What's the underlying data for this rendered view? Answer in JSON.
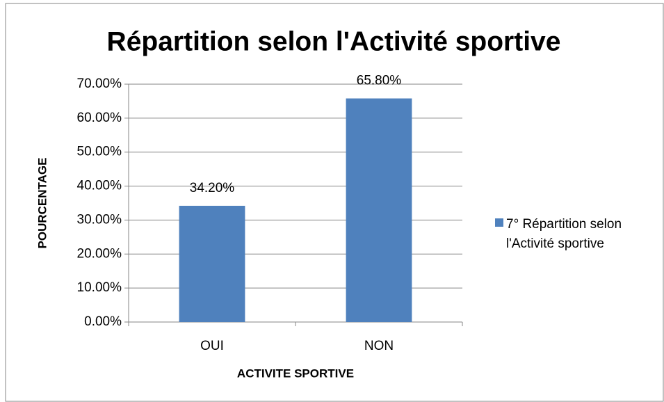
{
  "chart_data": {
    "type": "bar",
    "title": "Répartition selon l'Activité sportive",
    "x_label": "ACTIVITE SPORTIVE",
    "y_label": "POURCENTAGE",
    "categories": [
      "OUI",
      "NON"
    ],
    "series": [
      {
        "name": "7° Répartition selon l'Activité sportive",
        "color": "#4f81bd",
        "values": [
          34.2,
          65.8
        ],
        "value_labels": [
          "34.20%",
          "65.80%"
        ]
      }
    ],
    "ylim": [
      0,
      70
    ],
    "yticks": [
      {
        "value": 0,
        "label": "0.00%"
      },
      {
        "value": 10,
        "label": "10.00%"
      },
      {
        "value": 20,
        "label": "20.00%"
      },
      {
        "value": 30,
        "label": "30.00%"
      },
      {
        "value": 40,
        "label": "40.00%"
      },
      {
        "value": 50,
        "label": "50.00%"
      },
      {
        "value": 60,
        "label": "60.00%"
      },
      {
        "value": 70,
        "label": "70.00%"
      }
    ],
    "grid": true,
    "legend": "right"
  }
}
